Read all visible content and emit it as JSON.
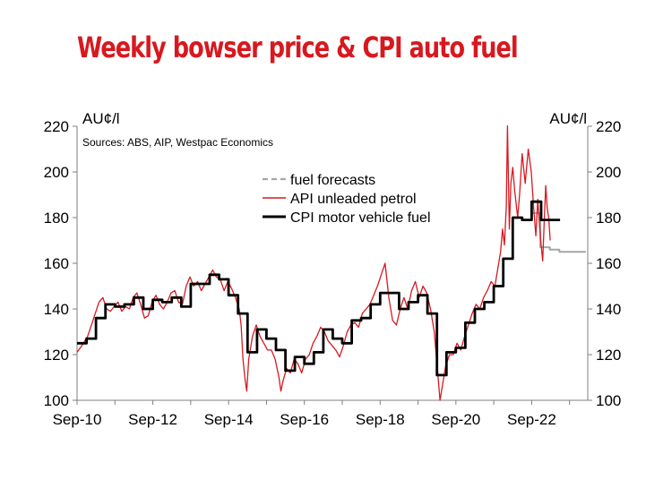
{
  "chart_data": {
    "type": "line",
    "title": "Weekly bowser price & CPI auto fuel",
    "source": "Sources: ABS, AIP, Westpac Economics",
    "y_unit_left": "AU¢/l",
    "y_unit_right": "AU¢/l",
    "ylim": [
      100,
      220
    ],
    "yticks": [
      100,
      120,
      140,
      160,
      180,
      200,
      220
    ],
    "xlim": [
      2010.67,
      2024.15
    ],
    "xticks": [
      {
        "label": "Sep-10",
        "value": 2010.67
      },
      {
        "label": "Sep-12",
        "value": 2012.67
      },
      {
        "label": "Sep-14",
        "value": 2014.67
      },
      {
        "label": "Sep-16",
        "value": 2016.67
      },
      {
        "label": "Sep-18",
        "value": 2018.67
      },
      {
        "label": "Sep-20",
        "value": 2020.67
      },
      {
        "label": "Sep-22",
        "value": 2022.67
      }
    ],
    "grid": false,
    "legend_position": "top-center",
    "series": [
      {
        "name": "fuel forecasts",
        "style": "dashed",
        "color": "#a6a6a6",
        "points": [
          [
            2022.67,
            182
          ],
          [
            2022.9,
            182
          ],
          [
            2022.9,
            167
          ],
          [
            2023.15,
            167
          ],
          [
            2023.15,
            166
          ],
          [
            2023.4,
            166
          ],
          [
            2023.4,
            165
          ],
          [
            2023.65,
            165
          ],
          [
            2024.1,
            165
          ]
        ]
      },
      {
        "name": "API unleaded petrol",
        "style": "solid",
        "color": "#d7191f",
        "points": [
          [
            2010.67,
            121
          ],
          [
            2010.8,
            124
          ],
          [
            2010.95,
            128
          ],
          [
            2011.05,
            133
          ],
          [
            2011.15,
            138
          ],
          [
            2011.25,
            143
          ],
          [
            2011.35,
            145
          ],
          [
            2011.45,
            140
          ],
          [
            2011.55,
            139
          ],
          [
            2011.65,
            141
          ],
          [
            2011.75,
            143
          ],
          [
            2011.85,
            139
          ],
          [
            2011.95,
            141
          ],
          [
            2012.05,
            140
          ],
          [
            2012.15,
            145
          ],
          [
            2012.25,
            147
          ],
          [
            2012.35,
            142
          ],
          [
            2012.45,
            136
          ],
          [
            2012.55,
            137
          ],
          [
            2012.65,
            143
          ],
          [
            2012.75,
            146
          ],
          [
            2012.85,
            142
          ],
          [
            2012.95,
            140
          ],
          [
            2013.05,
            143
          ],
          [
            2013.15,
            147
          ],
          [
            2013.25,
            148
          ],
          [
            2013.35,
            143
          ],
          [
            2013.45,
            142
          ],
          [
            2013.55,
            150
          ],
          [
            2013.65,
            154
          ],
          [
            2013.75,
            150
          ],
          [
            2013.85,
            152
          ],
          [
            2013.95,
            148
          ],
          [
            2014.05,
            151
          ],
          [
            2014.15,
            154
          ],
          [
            2014.25,
            157
          ],
          [
            2014.35,
            154
          ],
          [
            2014.45,
            153
          ],
          [
            2014.55,
            148
          ],
          [
            2014.65,
            152
          ],
          [
            2014.75,
            149
          ],
          [
            2014.85,
            145
          ],
          [
            2014.95,
            140
          ],
          [
            2015.0,
            133
          ],
          [
            2015.05,
            118
          ],
          [
            2015.1,
            110
          ],
          [
            2015.15,
            104
          ],
          [
            2015.2,
            118
          ],
          [
            2015.3,
            128
          ],
          [
            2015.4,
            133
          ],
          [
            2015.5,
            128
          ],
          [
            2015.6,
            125
          ],
          [
            2015.7,
            122
          ],
          [
            2015.8,
            122
          ],
          [
            2015.9,
            118
          ],
          [
            2016.0,
            110
          ],
          [
            2016.05,
            104
          ],
          [
            2016.1,
            108
          ],
          [
            2016.2,
            114
          ],
          [
            2016.3,
            112
          ],
          [
            2016.4,
            118
          ],
          [
            2016.5,
            116
          ],
          [
            2016.6,
            112
          ],
          [
            2016.7,
            118
          ],
          [
            2016.8,
            120
          ],
          [
            2016.9,
            125
          ],
          [
            2017.0,
            128
          ],
          [
            2017.1,
            132
          ],
          [
            2017.2,
            130
          ],
          [
            2017.3,
            126
          ],
          [
            2017.4,
            124
          ],
          [
            2017.5,
            122
          ],
          [
            2017.6,
            119
          ],
          [
            2017.7,
            124
          ],
          [
            2017.8,
            130
          ],
          [
            2017.9,
            133
          ],
          [
            2018.0,
            134
          ],
          [
            2018.1,
            132
          ],
          [
            2018.2,
            138
          ],
          [
            2018.3,
            140
          ],
          [
            2018.4,
            142
          ],
          [
            2018.5,
            146
          ],
          [
            2018.6,
            150
          ],
          [
            2018.7,
            155
          ],
          [
            2018.8,
            160
          ],
          [
            2018.9,
            145
          ],
          [
            2019.0,
            135
          ],
          [
            2019.1,
            133
          ],
          [
            2019.2,
            140
          ],
          [
            2019.3,
            145
          ],
          [
            2019.4,
            140
          ],
          [
            2019.5,
            148
          ],
          [
            2019.6,
            152
          ],
          [
            2019.7,
            145
          ],
          [
            2019.8,
            150
          ],
          [
            2019.9,
            147
          ],
          [
            2020.0,
            140
          ],
          [
            2020.1,
            130
          ],
          [
            2020.2,
            110
          ],
          [
            2020.25,
            100
          ],
          [
            2020.3,
            105
          ],
          [
            2020.4,
            115
          ],
          [
            2020.5,
            120
          ],
          [
            2020.6,
            120
          ],
          [
            2020.7,
            125
          ],
          [
            2020.8,
            122
          ],
          [
            2020.9,
            128
          ],
          [
            2021.0,
            133
          ],
          [
            2021.1,
            138
          ],
          [
            2021.2,
            142
          ],
          [
            2021.3,
            140
          ],
          [
            2021.4,
            145
          ],
          [
            2021.5,
            148
          ],
          [
            2021.6,
            152
          ],
          [
            2021.7,
            150
          ],
          [
            2021.8,
            160
          ],
          [
            2021.85,
            165
          ],
          [
            2021.9,
            175
          ],
          [
            2021.95,
            168
          ],
          [
            2022.0,
            185
          ],
          [
            2022.03,
            221
          ],
          [
            2022.08,
            175
          ],
          [
            2022.12,
            195
          ],
          [
            2022.17,
            202
          ],
          [
            2022.22,
            192
          ],
          [
            2022.3,
            180
          ],
          [
            2022.35,
            190
          ],
          [
            2022.42,
            208
          ],
          [
            2022.5,
            195
          ],
          [
            2022.58,
            210
          ],
          [
            2022.66,
            200
          ],
          [
            2022.72,
            185
          ],
          [
            2022.78,
            172
          ],
          [
            2022.83,
            188
          ],
          [
            2022.88,
            176
          ],
          [
            2022.92,
            168
          ],
          [
            2022.96,
            161
          ],
          [
            2023.0,
            178
          ],
          [
            2023.04,
            194
          ],
          [
            2023.08,
            184
          ],
          [
            2023.12,
            180
          ],
          [
            2023.16,
            170
          ]
        ]
      },
      {
        "name": "CPI motor vehicle fuel",
        "style": "step",
        "color": "#000000",
        "points": [
          [
            2010.67,
            125
          ],
          [
            2010.92,
            127
          ],
          [
            2011.17,
            136
          ],
          [
            2011.42,
            142
          ],
          [
            2011.67,
            141
          ],
          [
            2011.92,
            142
          ],
          [
            2012.17,
            145
          ],
          [
            2012.42,
            140
          ],
          [
            2012.67,
            144
          ],
          [
            2012.92,
            143
          ],
          [
            2013.17,
            145
          ],
          [
            2013.42,
            141
          ],
          [
            2013.67,
            151
          ],
          [
            2013.92,
            151
          ],
          [
            2014.17,
            155
          ],
          [
            2014.42,
            153
          ],
          [
            2014.67,
            146
          ],
          [
            2014.92,
            138
          ],
          [
            2015.17,
            121
          ],
          [
            2015.42,
            131
          ],
          [
            2015.67,
            127
          ],
          [
            2015.92,
            122
          ],
          [
            2016.17,
            113
          ],
          [
            2016.42,
            119
          ],
          [
            2016.67,
            116
          ],
          [
            2016.92,
            121
          ],
          [
            2017.17,
            131
          ],
          [
            2017.42,
            127
          ],
          [
            2017.67,
            125
          ],
          [
            2017.92,
            135
          ],
          [
            2018.17,
            136
          ],
          [
            2018.42,
            142
          ],
          [
            2018.67,
            147
          ],
          [
            2018.92,
            147
          ],
          [
            2019.17,
            140
          ],
          [
            2019.42,
            143
          ],
          [
            2019.67,
            146
          ],
          [
            2019.92,
            138
          ],
          [
            2020.17,
            111
          ],
          [
            2020.42,
            121
          ],
          [
            2020.67,
            123
          ],
          [
            2020.92,
            134
          ],
          [
            2021.17,
            140
          ],
          [
            2021.42,
            143
          ],
          [
            2021.67,
            150
          ],
          [
            2021.92,
            162
          ],
          [
            2022.17,
            180
          ],
          [
            2022.42,
            179
          ],
          [
            2022.67,
            187
          ],
          [
            2022.92,
            179
          ],
          [
            2023.17,
            179
          ]
        ]
      }
    ]
  }
}
